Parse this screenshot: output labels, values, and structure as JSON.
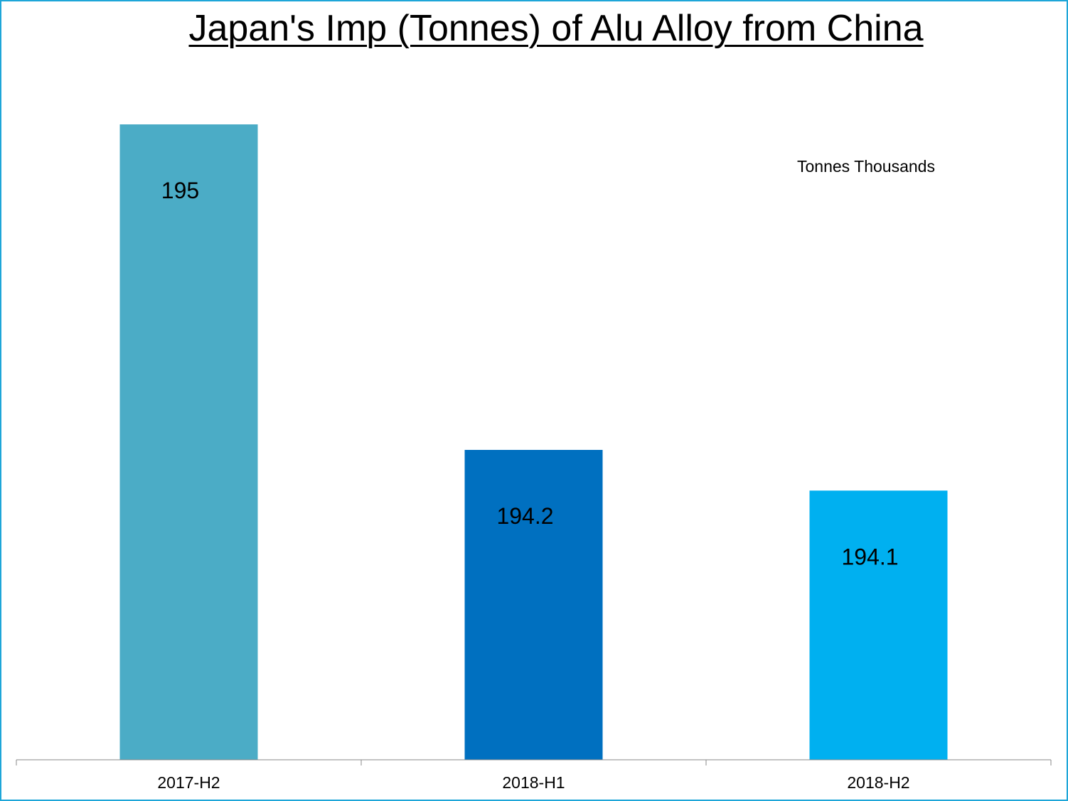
{
  "chart_data": {
    "type": "bar",
    "title": "Japan's Imp (Tonnes) of Alu Alloy from China",
    "unit_note": "Tonnes Thousands",
    "categories": [
      "2017-H2",
      "2018-H1",
      "2018-H2"
    ],
    "values": [
      195,
      194.2,
      194.1
    ],
    "value_labels": [
      "195",
      "194.2",
      "194.1"
    ],
    "colors": [
      "#4bacc6",
      "#0070c0",
      "#00b0f0"
    ],
    "xlabel": "",
    "ylabel": "",
    "y_axis_visible": false,
    "grid": false,
    "legend": "none"
  },
  "frame_color": "#1ea6d8"
}
